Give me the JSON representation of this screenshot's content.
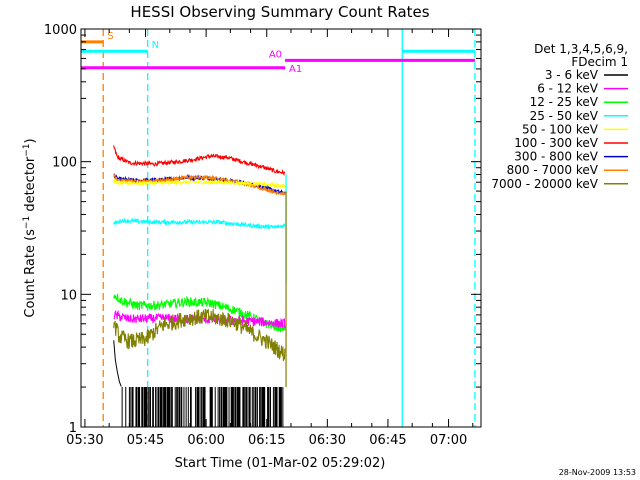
{
  "chart_data": {
    "type": "line",
    "title": "HESSI Observing Summary Count Rates",
    "xlabel": "Start Time (01-Mar-02 05:29:02)",
    "ylabel": "Count Rate (s⁻¹ detector⁻¹)",
    "ylabel_main": "Count Rate (s",
    "ylabel_sup1": "−1",
    "ylabel_mid": " detector",
    "ylabel_sup2": "−1",
    "ylabel_end": ")",
    "x_unit": "minutes since 05:29:02",
    "xlim": [
      0,
      99
    ],
    "ylim": [
      1,
      1000
    ],
    "yscale": "log",
    "x_ticks": [
      {
        "x": 0.97,
        "label": "05:30"
      },
      {
        "x": 15.97,
        "label": "05:45"
      },
      {
        "x": 30.97,
        "label": "06:00"
      },
      {
        "x": 45.97,
        "label": "06:15"
      },
      {
        "x": 60.97,
        "label": "06:30"
      },
      {
        "x": 75.97,
        "label": "06:45"
      },
      {
        "x": 90.97,
        "label": "07:00"
      }
    ],
    "y_ticks": [
      {
        "y": 1,
        "label": "1"
      },
      {
        "y": 10,
        "label": "10"
      },
      {
        "y": 100,
        "label": "100"
      },
      {
        "y": 1000,
        "label": "1000"
      }
    ],
    "grid": false,
    "legend": {
      "placement": "outside-right",
      "header": [
        "Det 1,3,4,5,6,9,",
        "FDecim 1"
      ],
      "entries": [
        {
          "label": "3 - 6 keV",
          "color": "#000000"
        },
        {
          "label": "6 - 12 keV",
          "color": "#ff00ff"
        },
        {
          "label": "12 - 25 keV",
          "color": "#00ff00"
        },
        {
          "label": "25 - 50 keV",
          "color": "#00ffff"
        },
        {
          "label": "50 - 100 keV",
          "color": "#ffff00"
        },
        {
          "label": "100 - 300 keV",
          "color": "#ff0000"
        },
        {
          "label": "300 - 800 keV",
          "color": "#0000cc"
        },
        {
          "label": "800 - 7000 keV",
          "color": "#ff8000"
        },
        {
          "label": "7000 - 20000 keV",
          "color": "#808000"
        }
      ]
    },
    "series": [
      {
        "name": "100 - 300 keV",
        "color": "#ff0000",
        "noise": 0.035,
        "points": [
          [
            8.1,
            130
          ],
          [
            9,
            108
          ],
          [
            12,
            98
          ],
          [
            18,
            96
          ],
          [
            24,
            100
          ],
          [
            28,
            104
          ],
          [
            32,
            110
          ],
          [
            36,
            108
          ],
          [
            40,
            100
          ],
          [
            44,
            93
          ],
          [
            48,
            85
          ],
          [
            50.5,
            82
          ]
        ]
      },
      {
        "name": "300 - 800 keV",
        "color": "#0000cc",
        "noise": 0.035,
        "points": [
          [
            8.1,
            80
          ],
          [
            9,
            74
          ],
          [
            14,
            72
          ],
          [
            20,
            73
          ],
          [
            26,
            76
          ],
          [
            32,
            75
          ],
          [
            38,
            71
          ],
          [
            44,
            66
          ],
          [
            48,
            60
          ],
          [
            50.5,
            58
          ]
        ]
      },
      {
        "name": "800 - 7000 keV",
        "color": "#ff8000",
        "noise": 0.03,
        "points": [
          [
            8.1,
            78
          ],
          [
            9,
            73
          ],
          [
            14,
            71
          ],
          [
            20,
            72
          ],
          [
            26,
            76
          ],
          [
            32,
            76
          ],
          [
            38,
            71
          ],
          [
            44,
            64
          ],
          [
            48,
            59
          ],
          [
            50.5,
            57
          ]
        ]
      },
      {
        "name": "50 - 100 keV",
        "color": "#ffff00",
        "noise": 0.03,
        "points": [
          [
            8.1,
            72
          ],
          [
            9,
            69
          ],
          [
            16,
            69
          ],
          [
            24,
            70
          ],
          [
            32,
            70
          ],
          [
            40,
            69
          ],
          [
            46,
            67
          ],
          [
            50.5,
            66
          ]
        ]
      },
      {
        "name": "25 - 50 keV",
        "color": "#00ffff",
        "noise": 0.035,
        "points": [
          [
            8.1,
            34
          ],
          [
            10,
            36
          ],
          [
            18,
            35
          ],
          [
            26,
            35
          ],
          [
            34,
            35
          ],
          [
            42,
            33
          ],
          [
            48,
            32
          ],
          [
            50.5,
            33
          ]
        ]
      },
      {
        "name": "12 - 25 keV",
        "color": "#00ff00",
        "noise": 0.08,
        "points": [
          [
            8.1,
            10
          ],
          [
            10,
            9
          ],
          [
            14,
            8.2
          ],
          [
            20,
            8.3
          ],
          [
            26,
            8.8
          ],
          [
            32,
            8.6
          ],
          [
            38,
            7.6
          ],
          [
            42,
            6.8
          ],
          [
            46,
            6
          ],
          [
            50.5,
            5.5
          ]
        ]
      },
      {
        "name": "6 - 12 keV",
        "color": "#ff00ff",
        "noise": 0.08,
        "points": [
          [
            8.1,
            7
          ],
          [
            12,
            6.5
          ],
          [
            20,
            6.6
          ],
          [
            28,
            6.5
          ],
          [
            36,
            6.4
          ],
          [
            44,
            6.2
          ],
          [
            50.5,
            6
          ]
        ]
      },
      {
        "name": "7000 - 20000 keV",
        "color": "#808000",
        "noise": 0.14,
        "points": [
          [
            8.1,
            6
          ],
          [
            9.5,
            4.8
          ],
          [
            12,
            4.4
          ],
          [
            16,
            4.6
          ],
          [
            20,
            5.8
          ],
          [
            26,
            6.6
          ],
          [
            32,
            6.8
          ],
          [
            38,
            6.2
          ],
          [
            42,
            5.2
          ],
          [
            46,
            4.4
          ],
          [
            50.5,
            3.5
          ]
        ]
      }
    ],
    "spike_series": {
      "name": "3 - 6 keV",
      "color": "#000000",
      "points": [
        [
          8.1,
          4.5
        ],
        [
          8.5,
          3.2
        ],
        [
          9,
          2.6
        ],
        [
          9.5,
          2.2
        ],
        [
          10,
          2
        ],
        [
          50.5,
          2
        ]
      ],
      "x_range": [
        10,
        50.5
      ],
      "spike_level": 2,
      "floor": 1
    },
    "boundary_spikes": [
      {
        "x": 50.5,
        "y_low": 12,
        "y_high": 80,
        "color": "#00ffff"
      },
      {
        "x": 50.5,
        "y_low": 2,
        "y_high": 60,
        "color": "#808000"
      }
    ],
    "flag_bars": [
      {
        "label": "S",
        "color": "#ff8000",
        "x_start": 0,
        "x_end": 5.5,
        "y": 800
      },
      {
        "label": "N",
        "color": "#00ffff",
        "x_start": 0,
        "x_end": 16.5,
        "y": 680
      },
      {
        "label": "",
        "color": "#00ffff",
        "x_start": 79.5,
        "x_end": 97.5,
        "y": 680
      },
      {
        "label": "A0",
        "color": "#ff00ff",
        "x_start": 50.5,
        "x_end": 97.5,
        "y": 580
      },
      {
        "label": "A1",
        "color": "#ff00ff",
        "x_start": 0,
        "x_end": 50.5,
        "y": 510
      }
    ],
    "vlines": [
      {
        "x": 5.5,
        "color": "#ff8000",
        "style": "dashed"
      },
      {
        "x": 16.5,
        "color": "#00ffff",
        "style": "dashed"
      },
      {
        "x": 79.5,
        "color": "#00ffff",
        "style": "solid"
      },
      {
        "x": 97.5,
        "color": "#00ffff",
        "style": "dashed"
      }
    ]
  },
  "footer": {
    "timestamp": "28-Nov-2009 13:53"
  }
}
